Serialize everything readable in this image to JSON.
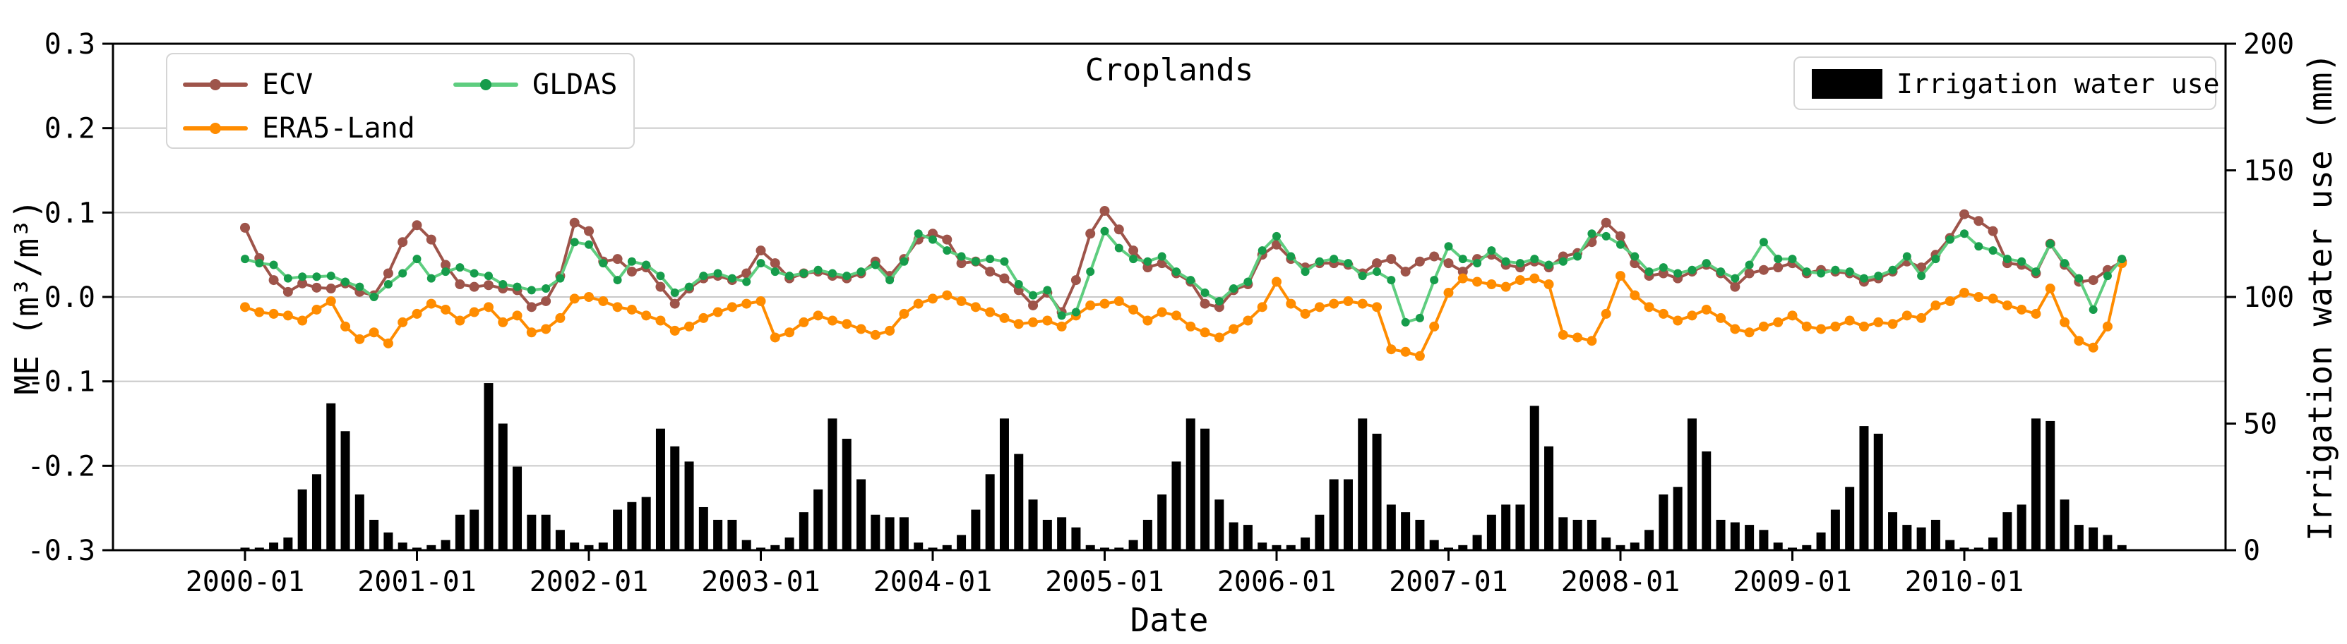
{
  "figure": {
    "title": "Croplands",
    "x_axis_label": "Date",
    "y_left_label": "ME (m³/m³)",
    "y_right_label": "Irrigation water use (mm)"
  },
  "legend_left": {
    "items": [
      {
        "label": "ECV",
        "color": "#9e544a"
      },
      {
        "label": "ERA5-Land",
        "color": "#ff8c00"
      },
      {
        "label": "GLDAS",
        "color": "#5ecd7f",
        "marker_color": "#169c4b"
      }
    ]
  },
  "legend_right": {
    "items": [
      {
        "label": "Irrigation water use",
        "color": "#000000"
      }
    ]
  },
  "chart_data": {
    "type": "line+bar",
    "title": "Croplands",
    "xlabel": "Date",
    "ylabel_left": "ME (m³/m³)",
    "ylabel_right": "Irrigation water use (mm)",
    "x_start": "2000-01",
    "n_months": 132,
    "x_tick_labels": [
      "2000-01",
      "2001-01",
      "2002-01",
      "2003-01",
      "2004-01",
      "2005-01",
      "2006-01",
      "2007-01",
      "2008-01",
      "2009-01",
      "2010-01"
    ],
    "y_left_ticks": [
      "0.3",
      "0.2",
      "0.1",
      "0.0",
      "-0.1",
      "-0.2",
      "-0.3"
    ],
    "y_left_range": [
      -0.3,
      0.3
    ],
    "y_right_ticks": [
      "200",
      "150",
      "100",
      "50",
      "0"
    ],
    "y_right_range": [
      0,
      200
    ],
    "grid_values_left": [
      0.2,
      0.1,
      0.0,
      -0.1,
      -0.2
    ],
    "grid_color": "#c9c9c9",
    "series": [
      {
        "name": "ECV",
        "color": "#9e544a",
        "marker_color": "#9e544a",
        "values": [
          0.082,
          0.046,
          0.02,
          0.006,
          0.016,
          0.011,
          0.01,
          0.016,
          0.006,
          0.002,
          0.028,
          0.065,
          0.085,
          0.068,
          0.038,
          0.015,
          0.012,
          0.014,
          0.01,
          0.008,
          -0.012,
          -0.005,
          0.025,
          0.088,
          0.078,
          0.042,
          0.045,
          0.03,
          0.035,
          0.012,
          -0.008,
          0.01,
          0.022,
          0.025,
          0.02,
          0.028,
          0.055,
          0.04,
          0.022,
          0.028,
          0.03,
          0.025,
          0.022,
          0.028,
          0.042,
          0.025,
          0.045,
          0.068,
          0.075,
          0.068,
          0.04,
          0.042,
          0.03,
          0.022,
          0.008,
          -0.01,
          0.005,
          -0.018,
          0.02,
          0.075,
          0.102,
          0.08,
          0.055,
          0.035,
          0.04,
          0.028,
          0.018,
          -0.008,
          -0.012,
          0.008,
          0.015,
          0.05,
          0.062,
          0.045,
          0.035,
          0.04,
          0.04,
          0.038,
          0.028,
          0.04,
          0.045,
          0.03,
          0.042,
          0.048,
          0.04,
          0.03,
          0.045,
          0.05,
          0.038,
          0.035,
          0.042,
          0.035,
          0.048,
          0.052,
          0.065,
          0.088,
          0.072,
          0.04,
          0.025,
          0.028,
          0.022,
          0.03,
          0.038,
          0.028,
          0.012,
          0.028,
          0.032,
          0.035,
          0.04,
          0.028,
          0.032,
          0.03,
          0.028,
          0.018,
          0.022,
          0.03,
          0.042,
          0.035,
          0.05,
          0.07,
          0.098,
          0.09,
          0.078,
          0.04,
          0.038,
          0.028,
          0.063,
          0.038,
          0.018,
          0.02,
          0.032,
          0.042
        ]
      },
      {
        "name": "ERA5-Land",
        "color": "#ff8c00",
        "marker_color": "#ff8c00",
        "values": [
          -0.012,
          -0.018,
          -0.02,
          -0.022,
          -0.028,
          -0.015,
          -0.005,
          -0.035,
          -0.05,
          -0.042,
          -0.055,
          -0.03,
          -0.02,
          -0.008,
          -0.015,
          -0.028,
          -0.018,
          -0.012,
          -0.03,
          -0.022,
          -0.042,
          -0.038,
          -0.025,
          -0.002,
          0.0,
          -0.005,
          -0.012,
          -0.015,
          -0.022,
          -0.028,
          -0.04,
          -0.035,
          -0.025,
          -0.018,
          -0.012,
          -0.008,
          -0.005,
          -0.048,
          -0.042,
          -0.03,
          -0.022,
          -0.028,
          -0.032,
          -0.038,
          -0.045,
          -0.04,
          -0.02,
          -0.008,
          -0.002,
          0.002,
          -0.005,
          -0.012,
          -0.018,
          -0.025,
          -0.032,
          -0.03,
          -0.028,
          -0.035,
          -0.022,
          -0.01,
          -0.008,
          -0.005,
          -0.015,
          -0.028,
          -0.018,
          -0.022,
          -0.035,
          -0.042,
          -0.048,
          -0.038,
          -0.028,
          -0.012,
          0.018,
          -0.008,
          -0.02,
          -0.012,
          -0.008,
          -0.005,
          -0.008,
          -0.012,
          -0.062,
          -0.065,
          -0.07,
          -0.035,
          0.005,
          0.022,
          0.018,
          0.015,
          0.012,
          0.02,
          0.022,
          0.015,
          -0.045,
          -0.048,
          -0.052,
          -0.02,
          0.025,
          0.002,
          -0.012,
          -0.02,
          -0.028,
          -0.022,
          -0.015,
          -0.025,
          -0.038,
          -0.042,
          -0.035,
          -0.03,
          -0.022,
          -0.035,
          -0.038,
          -0.035,
          -0.028,
          -0.035,
          -0.03,
          -0.032,
          -0.022,
          -0.025,
          -0.01,
          -0.005,
          0.005,
          0.0,
          -0.002,
          -0.01,
          -0.015,
          -0.02,
          0.01,
          -0.03,
          -0.052,
          -0.06,
          -0.035,
          0.04
        ]
      },
      {
        "name": "GLDAS",
        "color": "#5ecd7f",
        "marker_color": "#169c4b",
        "values": [
          0.045,
          0.04,
          0.038,
          0.022,
          0.024,
          0.024,
          0.025,
          0.018,
          0.012,
          0.0,
          0.015,
          0.028,
          0.045,
          0.022,
          0.03,
          0.035,
          0.028,
          0.025,
          0.015,
          0.012,
          0.008,
          0.01,
          0.022,
          0.065,
          0.062,
          0.04,
          0.02,
          0.042,
          0.038,
          0.025,
          0.005,
          0.012,
          0.025,
          0.028,
          0.022,
          0.018,
          0.04,
          0.03,
          0.025,
          0.028,
          0.032,
          0.028,
          0.025,
          0.03,
          0.038,
          0.02,
          0.042,
          0.075,
          0.068,
          0.055,
          0.048,
          0.042,
          0.045,
          0.042,
          0.015,
          0.002,
          0.008,
          -0.022,
          -0.018,
          0.03,
          0.078,
          0.058,
          0.045,
          0.042,
          0.048,
          0.03,
          0.02,
          0.005,
          -0.005,
          0.01,
          0.018,
          0.055,
          0.072,
          0.048,
          0.03,
          0.042,
          0.045,
          0.04,
          0.025,
          0.03,
          0.02,
          -0.03,
          -0.025,
          0.02,
          0.06,
          0.045,
          0.04,
          0.055,
          0.042,
          0.04,
          0.045,
          0.038,
          0.042,
          0.048,
          0.075,
          0.072,
          0.062,
          0.048,
          0.03,
          0.035,
          0.028,
          0.032,
          0.04,
          0.03,
          0.022,
          0.038,
          0.065,
          0.045,
          0.045,
          0.03,
          0.028,
          0.032,
          0.03,
          0.022,
          0.025,
          0.032,
          0.048,
          0.025,
          0.045,
          0.068,
          0.075,
          0.06,
          0.055,
          0.045,
          0.042,
          0.03,
          0.063,
          0.04,
          0.022,
          -0.015,
          0.025,
          0.045
        ]
      }
    ],
    "bars": {
      "name": "Irrigation water use",
      "color": "#000000",
      "unit": "mm",
      "values": [
        1,
        1,
        3,
        5,
        24,
        30,
        58,
        47,
        22,
        12,
        7,
        3,
        1,
        2,
        4,
        14,
        16,
        66,
        50,
        33,
        14,
        14,
        8,
        3,
        2,
        3,
        16,
        19,
        21,
        48,
        41,
        35,
        17,
        12,
        12,
        4,
        1,
        2,
        5,
        15,
        24,
        52,
        44,
        28,
        14,
        13,
        13,
        3,
        1,
        2,
        6,
        16,
        30,
        52,
        38,
        20,
        12,
        13,
        9,
        2,
        1,
        1,
        4,
        12,
        22,
        35,
        52,
        48,
        20,
        11,
        10,
        3,
        2,
        2,
        5,
        14,
        28,
        28,
        52,
        46,
        18,
        15,
        12,
        4,
        1,
        2,
        6,
        14,
        18,
        18,
        57,
        41,
        13,
        12,
        12,
        5,
        2,
        3,
        8,
        22,
        25,
        52,
        39,
        12,
        11,
        10,
        8,
        3,
        1,
        2,
        7,
        16,
        25,
        49,
        46,
        15,
        10,
        9,
        12,
        4,
        1,
        1,
        5,
        15,
        18,
        52,
        51,
        20,
        10,
        9,
        6,
        2
      ]
    }
  }
}
